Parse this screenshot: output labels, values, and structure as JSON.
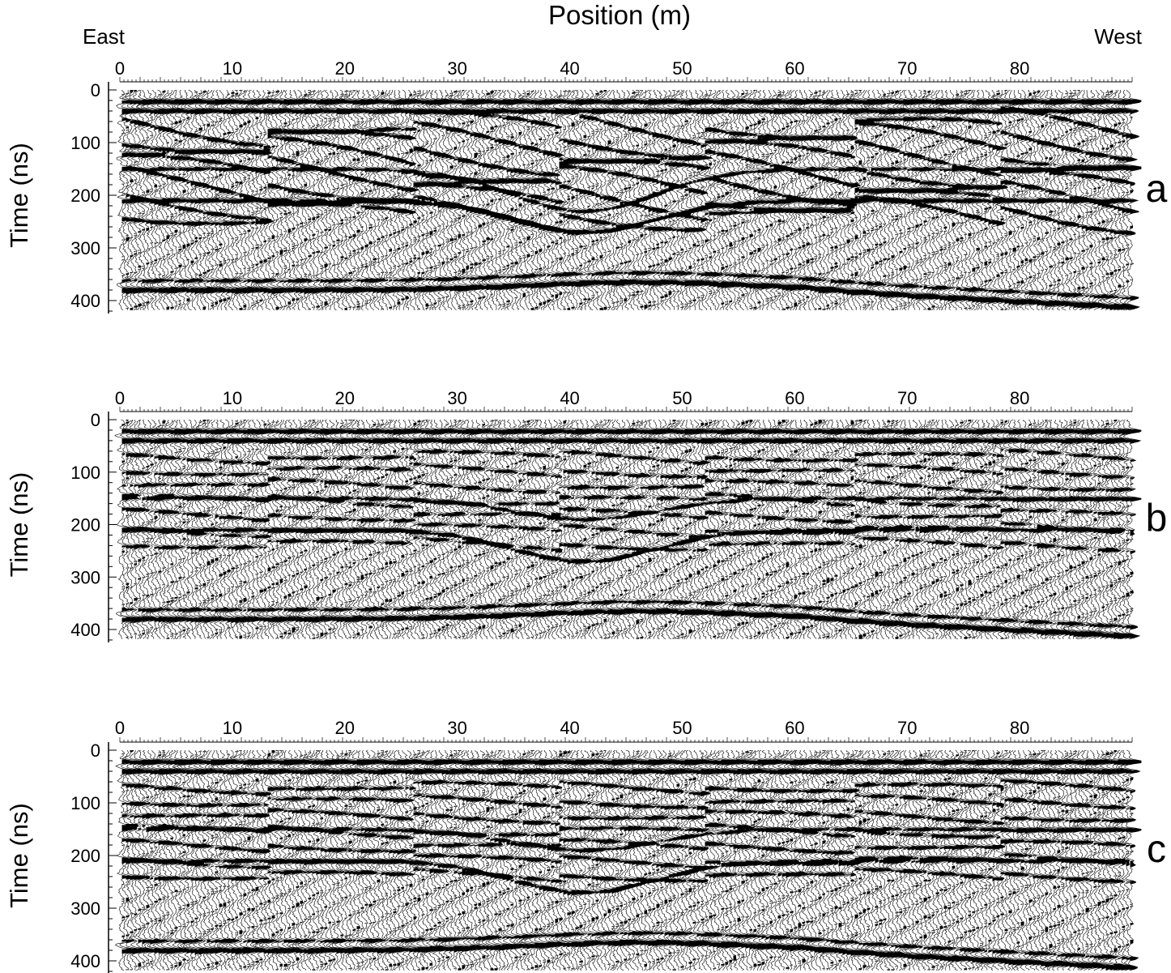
{
  "header": {
    "title": "Position (m)",
    "left_label": "East",
    "right_label": "West"
  },
  "colors": {
    "ink": "#000000",
    "background": "#ffffff"
  },
  "chart_data": [
    {
      "type": "heatmap",
      "panel_label": "a",
      "xlabel": "Position (m)",
      "ylabel": "Time (ns)",
      "xlim": [
        0,
        90
      ],
      "ylim": [
        0,
        420
      ],
      "y_inverted": true,
      "x_ticks": [
        0,
        10,
        20,
        30,
        40,
        50,
        60,
        70,
        80
      ],
      "y_ticks": [
        0,
        100,
        200,
        300,
        400
      ],
      "grid": false,
      "rendering": "wiggle traces, variable-area fill"
    },
    {
      "type": "heatmap",
      "panel_label": "b",
      "xlabel": "Position (m)",
      "ylabel": "Time (ns)",
      "xlim": [
        0,
        90
      ],
      "ylim": [
        0,
        420
      ],
      "y_inverted": true,
      "x_ticks": [
        0,
        10,
        20,
        30,
        40,
        50,
        60,
        70,
        80
      ],
      "y_ticks": [
        0,
        100,
        200,
        300,
        400
      ],
      "grid": false,
      "rendering": "wiggle traces, variable-area fill"
    },
    {
      "type": "heatmap",
      "panel_label": "c",
      "xlabel": "Position (m)",
      "ylabel": "Time (ns)",
      "xlim": [
        0,
        90
      ],
      "ylim": [
        0,
        420
      ],
      "y_inverted": true,
      "x_ticks": [
        0,
        10,
        20,
        30,
        40,
        50,
        60,
        70,
        80
      ],
      "y_ticks": [
        0,
        100,
        200,
        300,
        400
      ],
      "grid": false,
      "rendering": "wiggle traces, variable-area fill"
    }
  ]
}
